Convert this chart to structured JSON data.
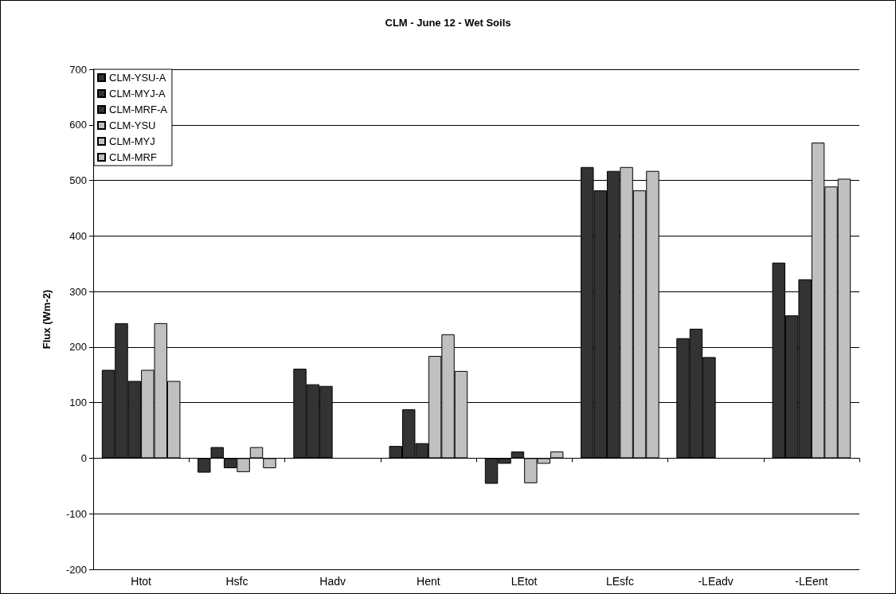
{
  "chart_data": {
    "type": "bar",
    "title": "CLM - June 12 - Wet Soils",
    "ylabel": "Flux (Wm-2)",
    "categories": [
      "Htot",
      "Hsfc",
      "Hadv",
      "Hent",
      "LEtot",
      "LEsfc",
      "-LEadv",
      "-LEent"
    ],
    "series": [
      {
        "name": "CLM-YSU-A",
        "color": "#333333",
        "values": [
          159,
          -26,
          161,
          22,
          -46,
          524,
          216,
          352
        ]
      },
      {
        "name": "CLM-MYJ-A",
        "color": "#333333",
        "values": [
          243,
          20,
          133,
          88,
          -10,
          482,
          233,
          257
        ]
      },
      {
        "name": "CLM-MRF-A",
        "color": "#333333",
        "values": [
          139,
          -18,
          130,
          27,
          12,
          517,
          182,
          322
        ]
      },
      {
        "name": "CLM-YSU",
        "color": "#c0c0c0",
        "values": [
          159,
          -25,
          null,
          184,
          -45,
          524,
          null,
          568
        ]
      },
      {
        "name": "CLM-MYJ",
        "color": "#c0c0c0",
        "values": [
          243,
          20,
          null,
          223,
          -10,
          482,
          null,
          489
        ]
      },
      {
        "name": "CLM-MRF",
        "color": "#c0c0c0",
        "values": [
          139,
          -18,
          null,
          157,
          12,
          517,
          null,
          503
        ]
      }
    ],
    "ylim": [
      -200,
      700
    ],
    "yticks": [
      -200,
      -100,
      0,
      100,
      200,
      300,
      400,
      500,
      600,
      700
    ],
    "grid": "y",
    "legend": "top left"
  }
}
